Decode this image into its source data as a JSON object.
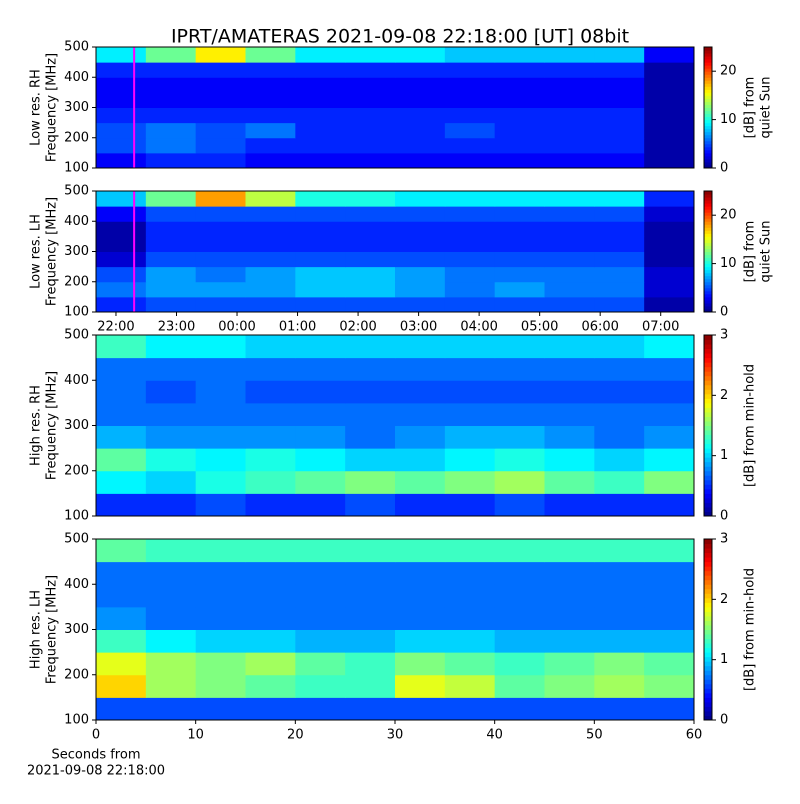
{
  "chart_data": [
    {
      "type": "heatmap",
      "title": "IPRT/AMATERAS 2021-09-08 22:18:00 [UT]   08bit",
      "ylabel": [
        "Low res. RH",
        "Frequency [MHz]"
      ],
      "ylim": [
        100,
        500
      ],
      "yticks": [
        100,
        200,
        300,
        400,
        500
      ],
      "xlim": [
        -0.33,
        9.55
      ],
      "colormap": "jet",
      "zlim": [
        0,
        25
      ],
      "zticks": [
        0,
        10,
        20
      ],
      "colorbar_label": [
        "[dB] from",
        "quiet Sun"
      ],
      "marker_line": {
        "x": 0.3,
        "color": "#ff00ff"
      },
      "z": [
        [
          3,
          4,
          4,
          3,
          3,
          3,
          3,
          3,
          3,
          3,
          3,
          1
        ],
        [
          5,
          6,
          5,
          4,
          4,
          4,
          4,
          4,
          4,
          4,
          4,
          1
        ],
        [
          5,
          6,
          5,
          6,
          4,
          4,
          4,
          5,
          4,
          4,
          4,
          1
        ],
        [
          4,
          4,
          4,
          4,
          4,
          4,
          4,
          4,
          4,
          4,
          4,
          1
        ],
        [
          3,
          3,
          3,
          3,
          3,
          3,
          3,
          3,
          3,
          3,
          3,
          1
        ],
        [
          3,
          3,
          3,
          3,
          3,
          3,
          3,
          3,
          3,
          3,
          3,
          1
        ],
        [
          4,
          4,
          4,
          4,
          4,
          4,
          4,
          4,
          4,
          4,
          4,
          1
        ],
        [
          9,
          12,
          16,
          12,
          9,
          9,
          9,
          8,
          8,
          8,
          8,
          3
        ]
      ]
    },
    {
      "type": "heatmap",
      "ylabel": [
        "Low res. LH",
        "Frequency [MHz]"
      ],
      "ylim": [
        100,
        500
      ],
      "yticks": [
        100,
        200,
        300,
        400,
        500
      ],
      "xlim": [
        -0.33,
        9.55
      ],
      "xticks": [
        {
          "value": 0,
          "label": "22:00"
        },
        {
          "value": 1,
          "label": "23:00"
        },
        {
          "value": 2,
          "label": "00:00"
        },
        {
          "value": 3,
          "label": "01:00"
        },
        {
          "value": 4,
          "label": "02:00"
        },
        {
          "value": 5,
          "label": "03:00"
        },
        {
          "value": 6,
          "label": "04:00"
        },
        {
          "value": 7,
          "label": "05:00"
        },
        {
          "value": 8,
          "label": "06:00"
        },
        {
          "value": 9,
          "label": "07:00"
        }
      ],
      "colormap": "jet",
      "zlim": [
        0,
        25
      ],
      "zticks": [
        0,
        10,
        20
      ],
      "colorbar_label": [
        "[dB] from",
        "quiet Sun"
      ],
      "marker_line": {
        "x": 0.3,
        "color": "#ff00ff"
      },
      "z": [
        [
          4,
          5,
          5,
          5,
          5,
          5,
          5,
          5,
          5,
          5,
          5,
          1
        ],
        [
          6,
          7,
          7,
          7,
          8,
          8,
          7,
          6,
          7,
          6,
          6,
          2
        ],
        [
          5,
          7,
          6,
          7,
          8,
          8,
          7,
          6,
          6,
          6,
          6,
          2
        ],
        [
          2,
          5,
          5,
          5,
          5,
          5,
          5,
          5,
          5,
          5,
          5,
          1
        ],
        [
          1,
          4,
          4,
          4,
          4,
          4,
          4,
          4,
          4,
          4,
          4,
          1
        ],
        [
          1,
          4,
          4,
          4,
          4,
          4,
          4,
          4,
          4,
          4,
          4,
          1
        ],
        [
          3,
          5,
          5,
          5,
          5,
          5,
          5,
          5,
          5,
          5,
          5,
          2
        ],
        [
          8,
          12,
          18,
          14,
          10,
          10,
          9,
          9,
          9,
          9,
          9,
          4
        ]
      ]
    },
    {
      "type": "heatmap",
      "ylabel": [
        "High res. RH",
        "Frequency [MHz]"
      ],
      "ylim": [
        100,
        500
      ],
      "yticks": [
        100,
        200,
        300,
        400,
        500
      ],
      "xlim": [
        0,
        60
      ],
      "colormap": "jet",
      "zlim": [
        0,
        3
      ],
      "zticks": [
        0,
        1,
        2,
        3
      ],
      "colorbar_label": [
        "[dB] from min-hold"
      ],
      "z": [
        [
          0.5,
          0.5,
          0.6,
          0.5,
          0.5,
          0.6,
          0.5,
          0.5,
          0.6,
          0.5,
          0.5,
          0.5
        ],
        [
          1.1,
          1.0,
          1.2,
          1.3,
          1.4,
          1.5,
          1.4,
          1.5,
          1.6,
          1.4,
          1.3,
          1.5
        ],
        [
          1.4,
          1.2,
          1.1,
          1.2,
          1.1,
          1.0,
          1.0,
          1.1,
          1.2,
          1.1,
          1.0,
          1.1
        ],
        [
          0.9,
          0.8,
          0.8,
          0.8,
          0.8,
          0.7,
          0.8,
          0.9,
          0.9,
          0.8,
          0.7,
          0.8
        ],
        [
          0.7,
          0.7,
          0.7,
          0.7,
          0.7,
          0.7,
          0.7,
          0.7,
          0.7,
          0.7,
          0.7,
          0.7
        ],
        [
          0.7,
          0.6,
          0.7,
          0.6,
          0.6,
          0.6,
          0.6,
          0.6,
          0.6,
          0.6,
          0.6,
          0.6
        ],
        [
          0.7,
          0.7,
          0.7,
          0.7,
          0.7,
          0.7,
          0.7,
          0.7,
          0.7,
          0.7,
          0.7,
          0.7
        ],
        [
          1.3,
          1.1,
          1.1,
          1.0,
          1.0,
          1.0,
          1.0,
          1.0,
          1.0,
          1.0,
          1.0,
          1.1
        ]
      ]
    },
    {
      "type": "heatmap",
      "ylabel": [
        "High res. LH",
        "Frequency [MHz]"
      ],
      "ylim": [
        100,
        500
      ],
      "yticks": [
        100,
        200,
        300,
        400,
        500
      ],
      "xlim": [
        0,
        60
      ],
      "xticks": [
        0,
        10,
        20,
        30,
        40,
        50,
        60
      ],
      "xlabel": [
        "Seconds from",
        "2021-09-08 22:18:00"
      ],
      "colormap": "jet",
      "zlim": [
        0,
        3
      ],
      "zticks": [
        0,
        1,
        2,
        3
      ],
      "colorbar_label": [
        "[dB] from min-hold"
      ],
      "z": [
        [
          0.6,
          0.6,
          0.6,
          0.6,
          0.6,
          0.6,
          0.6,
          0.6,
          0.6,
          0.6,
          0.6,
          0.6
        ],
        [
          2.0,
          1.6,
          1.5,
          1.4,
          1.3,
          1.3,
          1.8,
          1.7,
          1.4,
          1.5,
          1.6,
          1.5
        ],
        [
          1.8,
          1.6,
          1.5,
          1.6,
          1.4,
          1.3,
          1.5,
          1.4,
          1.3,
          1.4,
          1.5,
          1.4
        ],
        [
          1.3,
          1.1,
          1.0,
          1.0,
          0.9,
          0.9,
          1.0,
          1.0,
          0.9,
          0.9,
          0.9,
          0.9
        ],
        [
          0.8,
          0.7,
          0.7,
          0.7,
          0.7,
          0.7,
          0.7,
          0.7,
          0.7,
          0.7,
          0.7,
          0.7
        ],
        [
          0.7,
          0.7,
          0.7,
          0.7,
          0.7,
          0.7,
          0.7,
          0.7,
          0.7,
          0.7,
          0.7,
          0.7
        ],
        [
          0.7,
          0.7,
          0.7,
          0.7,
          0.7,
          0.7,
          0.7,
          0.7,
          0.7,
          0.7,
          0.7,
          0.7
        ],
        [
          1.4,
          1.3,
          1.3,
          1.3,
          1.3,
          1.3,
          1.3,
          1.3,
          1.3,
          1.3,
          1.3,
          1.3
        ]
      ]
    }
  ]
}
